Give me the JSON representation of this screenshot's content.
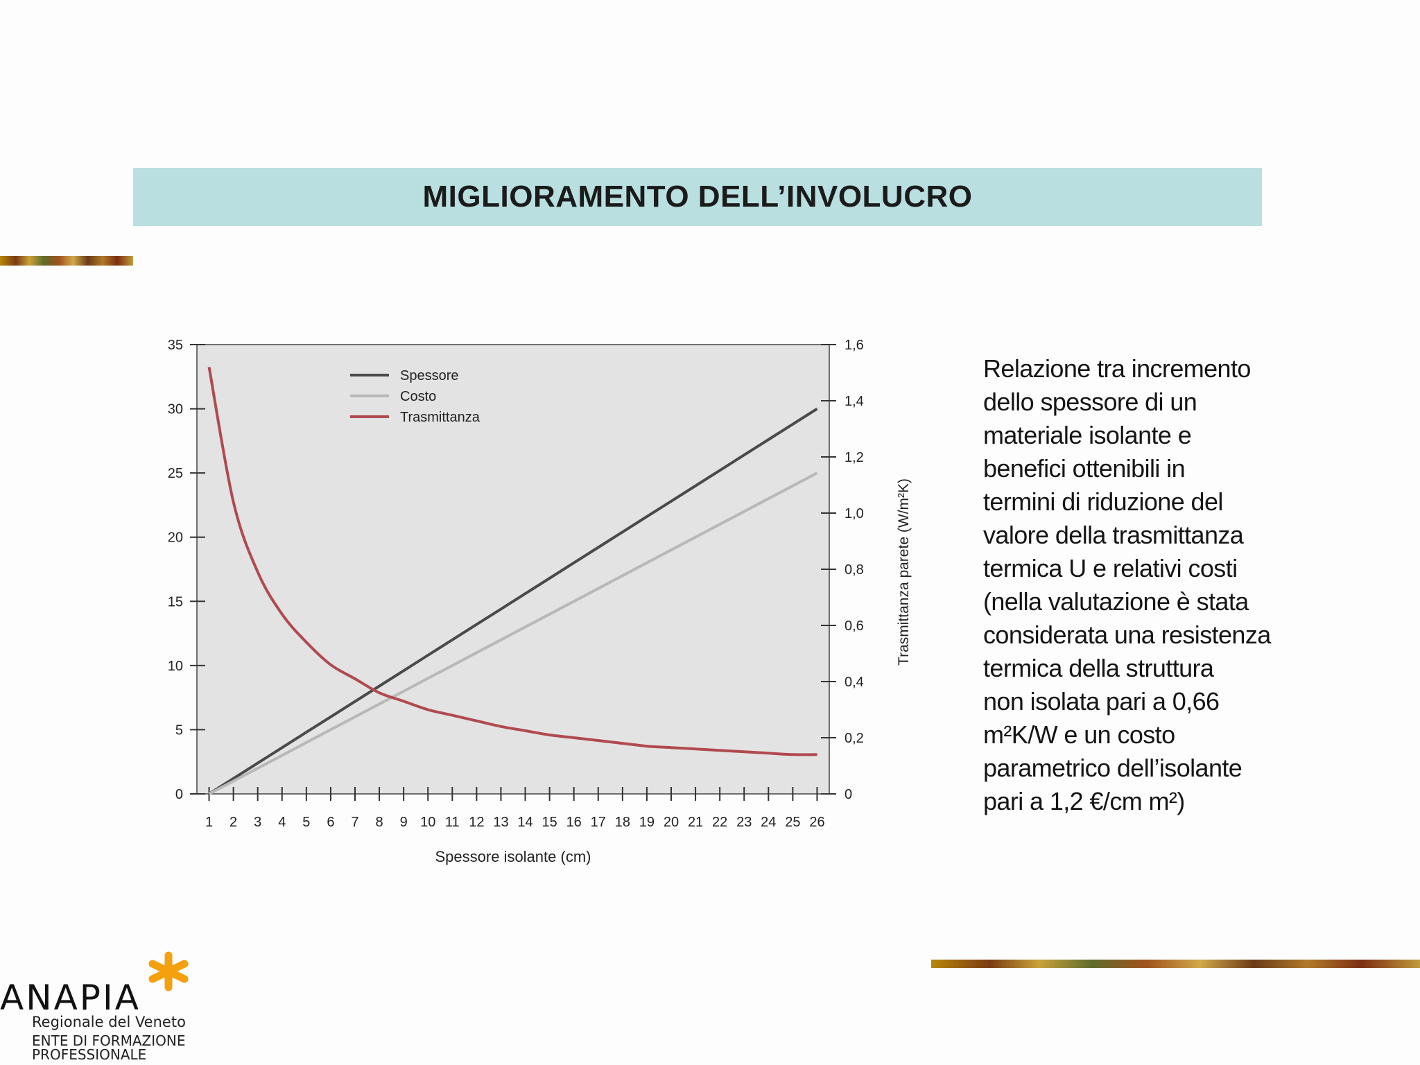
{
  "slide": {
    "title": "MIGLIORAMENTO DELL’INVOLUCRO",
    "description_lines": [
      "Relazione tra incremento",
      "dello spessore di un",
      "materiale isolante e",
      "benefici ottenibili in",
      "termini di riduzione del",
      "valore della trasmittanza",
      "termica U e relativi costi",
      "(nella valutazione è stata",
      "considerata una resistenza",
      "termica della struttura",
      "non isolata pari a 0,66",
      "m²K/W e un costo",
      "parametrico dell’isolante",
      "pari a 1,2 €/cm m²)"
    ]
  },
  "logo": {
    "name": "ANAPIA",
    "subtitle": "Regionale del Veneto",
    "tagline": "ENTE DI FORMAZIONE PROFESSIONALE",
    "accent": "#f5a00f"
  },
  "chart_data": {
    "type": "line",
    "title": "",
    "xlabel": "Spessore isolante  (cm)",
    "ylabel": "",
    "y2label": "Trasmittanza parete  (W/m²K)",
    "x": [
      1,
      2,
      3,
      4,
      5,
      6,
      7,
      8,
      9,
      10,
      11,
      12,
      13,
      14,
      15,
      16,
      17,
      18,
      19,
      20,
      21,
      22,
      23,
      24,
      25,
      26
    ],
    "xlim": [
      0.5,
      26.5
    ],
    "ylim": [
      0,
      35
    ],
    "y2lim": [
      0,
      1.6
    ],
    "yticks": [
      "0",
      "5",
      "10",
      "15",
      "20",
      "25",
      "30",
      "35"
    ],
    "y2ticks": [
      "0",
      "0,2",
      "0,4",
      "0,6",
      "0,8",
      "1,0",
      "1,2",
      "1,4",
      "1,6"
    ],
    "legend_position": "top-left",
    "grid": false,
    "background": "#e3e3e3",
    "series": [
      {
        "name": "Spessore",
        "axis": "left",
        "color": "#4a4a4a",
        "values": [
          0,
          1.2,
          2.4,
          3.6,
          4.8,
          6,
          7.2,
          8.4,
          9.6,
          10.8,
          12,
          13.2,
          14.4,
          15.6,
          16.8,
          18,
          19.2,
          20.4,
          21.6,
          22.8,
          24,
          25.2,
          26.4,
          27.6,
          28.8,
          30
        ]
      },
      {
        "name": "Costo",
        "axis": "left",
        "color": "#b8b8b8",
        "values": [
          0,
          1,
          2,
          3,
          4,
          5,
          6,
          7,
          8,
          9,
          10,
          11,
          12,
          13,
          14,
          15,
          16,
          17,
          18,
          19,
          20,
          21,
          22,
          23,
          24,
          25
        ]
      },
      {
        "name": "Trasmittanza",
        "axis": "right",
        "color": "#b04a4f",
        "values": [
          1.52,
          1.04,
          0.79,
          0.64,
          0.54,
          0.46,
          0.41,
          0.36,
          0.33,
          0.3,
          0.28,
          0.26,
          0.24,
          0.225,
          0.21,
          0.2,
          0.19,
          0.18,
          0.17,
          0.165,
          0.16,
          0.155,
          0.15,
          0.145,
          0.14,
          0.14
        ]
      }
    ]
  }
}
